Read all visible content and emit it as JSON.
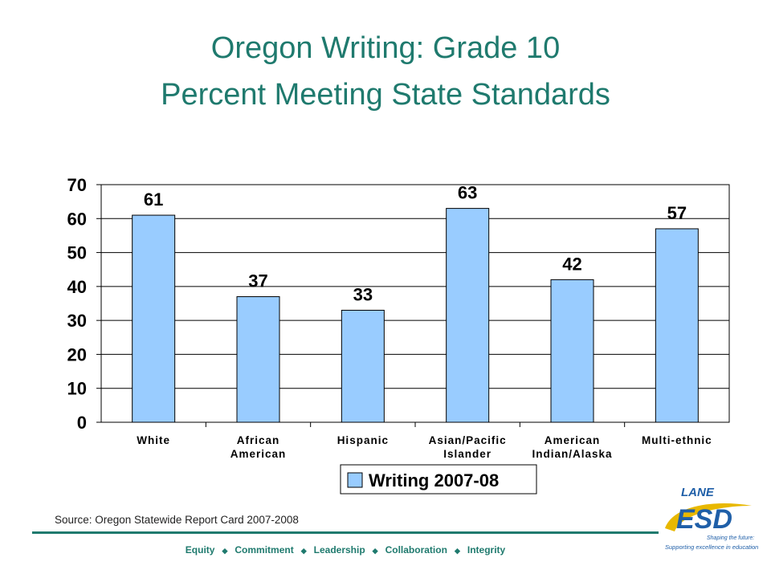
{
  "title_line1": "Oregon Writing: Grade 10",
  "title_line2": "Percent Meeting State Standards",
  "chart_data": {
    "type": "bar",
    "categories": [
      [
        "White"
      ],
      [
        "African",
        "American"
      ],
      [
        "Hispanic"
      ],
      [
        "Asian/Pacific",
        "Islander"
      ],
      [
        "American",
        "Indian/Alaska"
      ],
      [
        "Multi-ethnic"
      ]
    ],
    "series": [
      {
        "name": "Writing 2007-08",
        "values": [
          61,
          37,
          33,
          63,
          42,
          57
        ]
      }
    ],
    "ylim": [
      0,
      70
    ],
    "yticks": [
      0,
      10,
      20,
      30,
      40,
      50,
      60,
      70
    ],
    "grid": true,
    "bar_color": "#99ccff",
    "legend_position": "bottom"
  },
  "source": "Source: Oregon Statewide Report Card 2007-2008",
  "footer_items": [
    "Equity",
    "Commitment",
    "Leadership",
    "Collaboration",
    "Integrity"
  ],
  "footer_separator": "◆",
  "logo": {
    "top": "LANE",
    "main": "ESD",
    "tagline1": "Shaping the future:",
    "tagline2": "Supporting excellence in education"
  },
  "colors": {
    "title": "#1f7a6e",
    "bar": "#99ccff",
    "logo_blue": "#1f5fa8",
    "logo_gold": "#e8b800"
  }
}
